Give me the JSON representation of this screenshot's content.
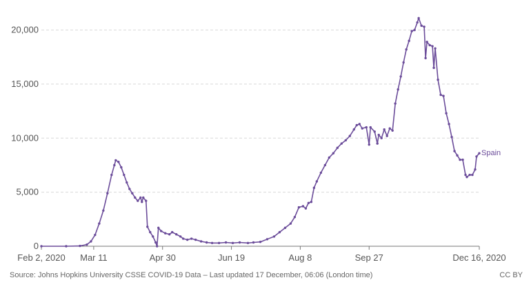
{
  "chart_data": {
    "type": "line",
    "title": "",
    "xlabel": "",
    "ylabel": "",
    "grid": true,
    "ylim": [
      0,
      21500
    ],
    "xlim": [
      "2020-02-02",
      "2020-12-16"
    ],
    "y_ticks": [
      0,
      5000,
      10000,
      15000,
      20000
    ],
    "y_tick_labels": [
      "0",
      "5,000",
      "10,000",
      "15,000",
      "20,000"
    ],
    "x_ticks": [
      "2020-02-02",
      "2020-03-11",
      "2020-04-30",
      "2020-06-19",
      "2020-08-08",
      "2020-09-27",
      "2020-12-16"
    ],
    "x_tick_labels": [
      "Feb 2, 2020",
      "Mar 11",
      "Apr 30",
      "Jun 19",
      "Aug 8",
      "Sep 27",
      "Dec 16, 2020"
    ],
    "colors": {
      "series": "#6b4c9a"
    },
    "series": [
      {
        "name": "Spain",
        "end_label": "Spain",
        "points": [
          [
            "2020-02-02",
            0
          ],
          [
            "2020-02-20",
            0
          ],
          [
            "2020-03-01",
            30
          ],
          [
            "2020-03-06",
            150
          ],
          [
            "2020-03-09",
            450
          ],
          [
            "2020-03-12",
            1050
          ],
          [
            "2020-03-15",
            2100
          ],
          [
            "2020-03-18",
            3300
          ],
          [
            "2020-03-21",
            4900
          ],
          [
            "2020-03-24",
            6600
          ],
          [
            "2020-03-26",
            7500
          ],
          [
            "2020-03-27",
            7950
          ],
          [
            "2020-03-29",
            7800
          ],
          [
            "2020-03-31",
            7300
          ],
          [
            "2020-04-02",
            6600
          ],
          [
            "2020-04-04",
            5900
          ],
          [
            "2020-04-06",
            5300
          ],
          [
            "2020-04-08",
            4900
          ],
          [
            "2020-04-10",
            4500
          ],
          [
            "2020-04-12",
            4200
          ],
          [
            "2020-04-14",
            4500
          ],
          [
            "2020-04-15",
            4100
          ],
          [
            "2020-04-16",
            4500
          ],
          [
            "2020-04-18",
            4200
          ],
          [
            "2020-04-19",
            1800
          ],
          [
            "2020-04-21",
            1300
          ],
          [
            "2020-04-23",
            900
          ],
          [
            "2020-04-25",
            350
          ],
          [
            "2020-04-26",
            0
          ],
          [
            "2020-04-27",
            1700
          ],
          [
            "2020-04-29",
            1400
          ],
          [
            "2020-05-02",
            1200
          ],
          [
            "2020-05-05",
            1100
          ],
          [
            "2020-05-07",
            1300
          ],
          [
            "2020-05-10",
            1100
          ],
          [
            "2020-05-13",
            900
          ],
          [
            "2020-05-15",
            700
          ],
          [
            "2020-05-18",
            600
          ],
          [
            "2020-05-21",
            700
          ],
          [
            "2020-05-24",
            600
          ],
          [
            "2020-05-28",
            450
          ],
          [
            "2020-06-01",
            350
          ],
          [
            "2020-06-05",
            300
          ],
          [
            "2020-06-10",
            300
          ],
          [
            "2020-06-15",
            350
          ],
          [
            "2020-06-20",
            300
          ],
          [
            "2020-06-25",
            350
          ],
          [
            "2020-07-01",
            300
          ],
          [
            "2020-07-05",
            350
          ],
          [
            "2020-07-10",
            400
          ],
          [
            "2020-07-15",
            650
          ],
          [
            "2020-07-20",
            900
          ],
          [
            "2020-07-24",
            1300
          ],
          [
            "2020-07-28",
            1700
          ],
          [
            "2020-08-01",
            2100
          ],
          [
            "2020-08-04",
            2700
          ],
          [
            "2020-08-07",
            3600
          ],
          [
            "2020-08-10",
            3700
          ],
          [
            "2020-08-12",
            3500
          ],
          [
            "2020-08-14",
            4000
          ],
          [
            "2020-08-16",
            4100
          ],
          [
            "2020-08-18",
            5400
          ],
          [
            "2020-08-20",
            6000
          ],
          [
            "2020-08-23",
            6800
          ],
          [
            "2020-08-26",
            7500
          ],
          [
            "2020-08-29",
            8200
          ],
          [
            "2020-09-01",
            8600
          ],
          [
            "2020-09-04",
            9100
          ],
          [
            "2020-09-07",
            9500
          ],
          [
            "2020-09-10",
            9800
          ],
          [
            "2020-09-13",
            10200
          ],
          [
            "2020-09-16",
            10800
          ],
          [
            "2020-09-18",
            11200
          ],
          [
            "2020-09-20",
            11300
          ],
          [
            "2020-09-22",
            10900
          ],
          [
            "2020-09-25",
            11000
          ],
          [
            "2020-09-27",
            9400
          ],
          [
            "2020-09-28",
            11000
          ],
          [
            "2020-10-01",
            10600
          ],
          [
            "2020-10-03",
            9500
          ],
          [
            "2020-10-04",
            10300
          ],
          [
            "2020-10-06",
            10000
          ],
          [
            "2020-10-08",
            10800
          ],
          [
            "2020-10-10",
            10200
          ],
          [
            "2020-10-12",
            10900
          ],
          [
            "2020-10-14",
            10700
          ],
          [
            "2020-10-16",
            13200
          ],
          [
            "2020-10-18",
            14500
          ],
          [
            "2020-10-20",
            15700
          ],
          [
            "2020-10-22",
            17000
          ],
          [
            "2020-10-24",
            18200
          ],
          [
            "2020-10-26",
            19000
          ],
          [
            "2020-10-28",
            19900
          ],
          [
            "2020-10-30",
            20000
          ],
          [
            "2020-11-01",
            20700
          ],
          [
            "2020-11-02",
            21100
          ],
          [
            "2020-11-04",
            20400
          ],
          [
            "2020-11-06",
            20300
          ],
          [
            "2020-11-07",
            17400
          ],
          [
            "2020-11-08",
            18900
          ],
          [
            "2020-11-10",
            18600
          ],
          [
            "2020-11-12",
            18500
          ],
          [
            "2020-11-13",
            16500
          ],
          [
            "2020-11-14",
            18300
          ],
          [
            "2020-11-16",
            15400
          ],
          [
            "2020-11-18",
            14000
          ],
          [
            "2020-11-20",
            13900
          ],
          [
            "2020-11-22",
            12300
          ],
          [
            "2020-11-24",
            11300
          ],
          [
            "2020-11-26",
            10100
          ],
          [
            "2020-11-28",
            8800
          ],
          [
            "2020-11-30",
            8400
          ],
          [
            "2020-12-02",
            8000
          ],
          [
            "2020-12-04",
            8000
          ],
          [
            "2020-12-06",
            6600
          ],
          [
            "2020-12-07",
            6400
          ],
          [
            "2020-12-09",
            6600
          ],
          [
            "2020-12-11",
            6600
          ],
          [
            "2020-12-13",
            7100
          ],
          [
            "2020-12-14",
            8300
          ],
          [
            "2020-12-16",
            8600
          ]
        ]
      }
    ]
  },
  "footer": {
    "source": "Source: Johns Hopkins University CSSE COVID-19 Data – Last updated 17 December, 06:06 (London time)",
    "license": "CC BY"
  }
}
